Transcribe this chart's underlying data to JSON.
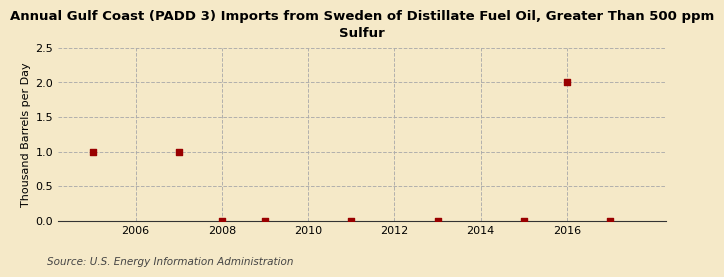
{
  "title": "Annual Gulf Coast (PADD 3) Imports from Sweden of Distillate Fuel Oil, Greater Than 500 ppm\nSulfur",
  "ylabel": "Thousand Barrels per Day",
  "source": "Source: U.S. Energy Information Administration",
  "background_color": "#f5e9c8",
  "plot_background_color": "#f5e9c8",
  "x_data": [
    2005,
    2007,
    2008,
    2009,
    2011,
    2013,
    2015,
    2016,
    2017
  ],
  "y_data": [
    1.0,
    1.0,
    0.0,
    0.0,
    0.0,
    0.0,
    0.0,
    2.0,
    0.0
  ],
  "marker_color": "#990000",
  "marker_size": 5,
  "xlim": [
    2004.2,
    2018.3
  ],
  "ylim": [
    0.0,
    2.5
  ],
  "yticks": [
    0.0,
    0.5,
    1.0,
    1.5,
    2.0,
    2.5
  ],
  "xticks": [
    2006,
    2008,
    2010,
    2012,
    2014,
    2016
  ],
  "grid_color": "#aaaaaa",
  "title_fontsize": 9.5,
  "axis_fontsize": 8,
  "source_fontsize": 7.5
}
